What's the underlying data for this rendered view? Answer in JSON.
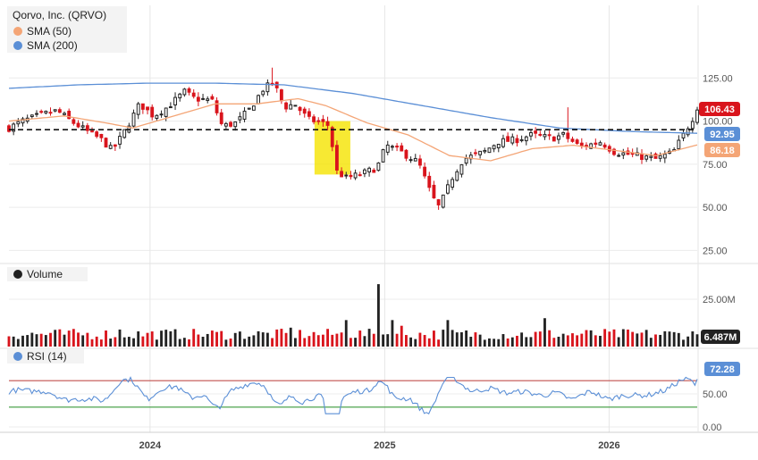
{
  "chart_data": {
    "type": "candlestick",
    "title": "Qorvo, Inc. (QRVO)",
    "colors": {
      "up": "#222222",
      "down": "#d9141c",
      "sma50": "#f4a576",
      "sma200": "#5b8fd6",
      "rsi": "#5b8fd6",
      "rsi_upper": "#c0504d",
      "rsi_lower": "#3a9a3a",
      "highlight": "#f5e400",
      "last_price_tag": "#d9141c",
      "sma200_tag": "#5b8fd6",
      "sma50_tag": "#f4a576",
      "rsi_tag": "#5b8fd6",
      "volume_tag": "#222222"
    },
    "price_panel": {
      "legend": [
        {
          "label": "Qorvo, Inc. (QRVO)",
          "marker": "none"
        },
        {
          "label": "SMA (50)",
          "marker": "#f4a576"
        },
        {
          "label": "SMA (200)",
          "marker": "#5b8fd6"
        }
      ],
      "ylim": [
        20,
        135
      ],
      "ticks": [
        "125.00",
        "100.00",
        "75.00",
        "50.00",
        "25.00"
      ],
      "tick_values": [
        125,
        100,
        75,
        50,
        25
      ],
      "reference_line": 95,
      "highlight_range": {
        "x": [
          0.444,
          0.496
        ],
        "y": [
          69,
          100
        ]
      },
      "last_price_label": "106.43",
      "last_price": 106.43,
      "sma200_label": "92.95",
      "sma200_last": 92.95,
      "sma50_label": "86.18",
      "sma50_last": 86.18,
      "close_keypoints": [
        {
          "t": 0.0,
          "v": 96
        },
        {
          "t": 0.02,
          "v": 100
        },
        {
          "t": 0.05,
          "v": 104
        },
        {
          "t": 0.07,
          "v": 106
        },
        {
          "t": 0.09,
          "v": 100
        },
        {
          "t": 0.11,
          "v": 95
        },
        {
          "t": 0.135,
          "v": 89
        },
        {
          "t": 0.15,
          "v": 83
        },
        {
          "t": 0.165,
          "v": 92
        },
        {
          "t": 0.19,
          "v": 110
        },
        {
          "t": 0.21,
          "v": 103
        },
        {
          "t": 0.23,
          "v": 108
        },
        {
          "t": 0.255,
          "v": 117
        },
        {
          "t": 0.27,
          "v": 113
        },
        {
          "t": 0.295,
          "v": 112
        },
        {
          "t": 0.31,
          "v": 97
        },
        {
          "t": 0.33,
          "v": 99
        },
        {
          "t": 0.35,
          "v": 107
        },
        {
          "t": 0.37,
          "v": 119
        },
        {
          "t": 0.385,
          "v": 122
        },
        {
          "t": 0.4,
          "v": 108
        },
        {
          "t": 0.415,
          "v": 110
        },
        {
          "t": 0.435,
          "v": 101
        },
        {
          "t": 0.455,
          "v": 99
        },
        {
          "t": 0.468,
          "v": 97
        },
        {
          "t": 0.472,
          "v": 72
        },
        {
          "t": 0.49,
          "v": 67
        },
        {
          "t": 0.51,
          "v": 69
        },
        {
          "t": 0.535,
          "v": 73
        },
        {
          "t": 0.548,
          "v": 86
        },
        {
          "t": 0.57,
          "v": 82
        },
        {
          "t": 0.595,
          "v": 76
        },
        {
          "t": 0.615,
          "v": 56
        },
        {
          "t": 0.625,
          "v": 50
        },
        {
          "t": 0.645,
          "v": 68
        },
        {
          "t": 0.66,
          "v": 78
        },
        {
          "t": 0.69,
          "v": 82
        },
        {
          "t": 0.71,
          "v": 88
        },
        {
          "t": 0.735,
          "v": 89
        },
        {
          "t": 0.76,
          "v": 92
        },
        {
          "t": 0.79,
          "v": 90
        },
        {
          "t": 0.805,
          "v": 92
        },
        {
          "t": 0.83,
          "v": 85
        },
        {
          "t": 0.86,
          "v": 88
        },
        {
          "t": 0.88,
          "v": 82
        },
        {
          "t": 0.91,
          "v": 80
        },
        {
          "t": 0.94,
          "v": 78
        },
        {
          "t": 0.965,
          "v": 82
        },
        {
          "t": 0.98,
          "v": 92
        },
        {
          "t": 1.0,
          "v": 106.43
        }
      ],
      "sma200_keypoints": [
        {
          "t": 0.0,
          "v": 119
        },
        {
          "t": 0.1,
          "v": 121
        },
        {
          "t": 0.2,
          "v": 122
        },
        {
          "t": 0.3,
          "v": 122
        },
        {
          "t": 0.4,
          "v": 121
        },
        {
          "t": 0.5,
          "v": 116
        },
        {
          "t": 0.6,
          "v": 109
        },
        {
          "t": 0.7,
          "v": 102
        },
        {
          "t": 0.8,
          "v": 96
        },
        {
          "t": 0.9,
          "v": 94
        },
        {
          "t": 1.0,
          "v": 92.95
        }
      ],
      "sma50_keypoints": [
        {
          "t": 0.0,
          "v": 100
        },
        {
          "t": 0.08,
          "v": 103
        },
        {
          "t": 0.14,
          "v": 99
        },
        {
          "t": 0.18,
          "v": 96
        },
        {
          "t": 0.24,
          "v": 103
        },
        {
          "t": 0.3,
          "v": 110
        },
        {
          "t": 0.36,
          "v": 110
        },
        {
          "t": 0.42,
          "v": 113
        },
        {
          "t": 0.46,
          "v": 109
        },
        {
          "t": 0.52,
          "v": 99
        },
        {
          "t": 0.58,
          "v": 92
        },
        {
          "t": 0.64,
          "v": 80
        },
        {
          "t": 0.7,
          "v": 77
        },
        {
          "t": 0.76,
          "v": 84
        },
        {
          "t": 0.82,
          "v": 86
        },
        {
          "t": 0.88,
          "v": 83
        },
        {
          "t": 0.94,
          "v": 80
        },
        {
          "t": 1.0,
          "v": 86.18
        }
      ],
      "spikes": [
        {
          "t": 0.385,
          "high": 131
        },
        {
          "t": 0.812,
          "high": 108
        }
      ]
    },
    "volume_panel": {
      "legend": "Volume",
      "ylim": [
        0,
        34000000
      ],
      "ticks": [
        "25.00M"
      ],
      "tick_values": [
        25000000
      ],
      "last_label": "6.487M",
      "last_value": 6487000,
      "typical": 6500000,
      "spikes": [
        {
          "t": 0.536,
          "v": 33000000
        },
        {
          "t": 0.49,
          "v": 14000000
        },
        {
          "t": 0.56,
          "v": 14000000
        },
        {
          "t": 0.57,
          "v": 11000000
        },
        {
          "t": 0.636,
          "v": 14000000
        },
        {
          "t": 0.78,
          "v": 15000000
        },
        {
          "t": 0.16,
          "v": 9000000
        },
        {
          "t": 0.41,
          "v": 10000000
        }
      ]
    },
    "rsi_panel": {
      "legend": "RSI (14)",
      "ylim": [
        0,
        100
      ],
      "ticks": [
        "50.00",
        "0.00"
      ],
      "tick_values": [
        50,
        0
      ],
      "upper": 70,
      "lower": 30,
      "last_label": "72.28",
      "last_value": 72.28
    },
    "x_axis": {
      "labels": [
        {
          "label": "2024",
          "t": 0.205
        },
        {
          "label": "2025",
          "t": 0.546
        },
        {
          "label": "2026",
          "t": 0.872
        }
      ]
    }
  }
}
